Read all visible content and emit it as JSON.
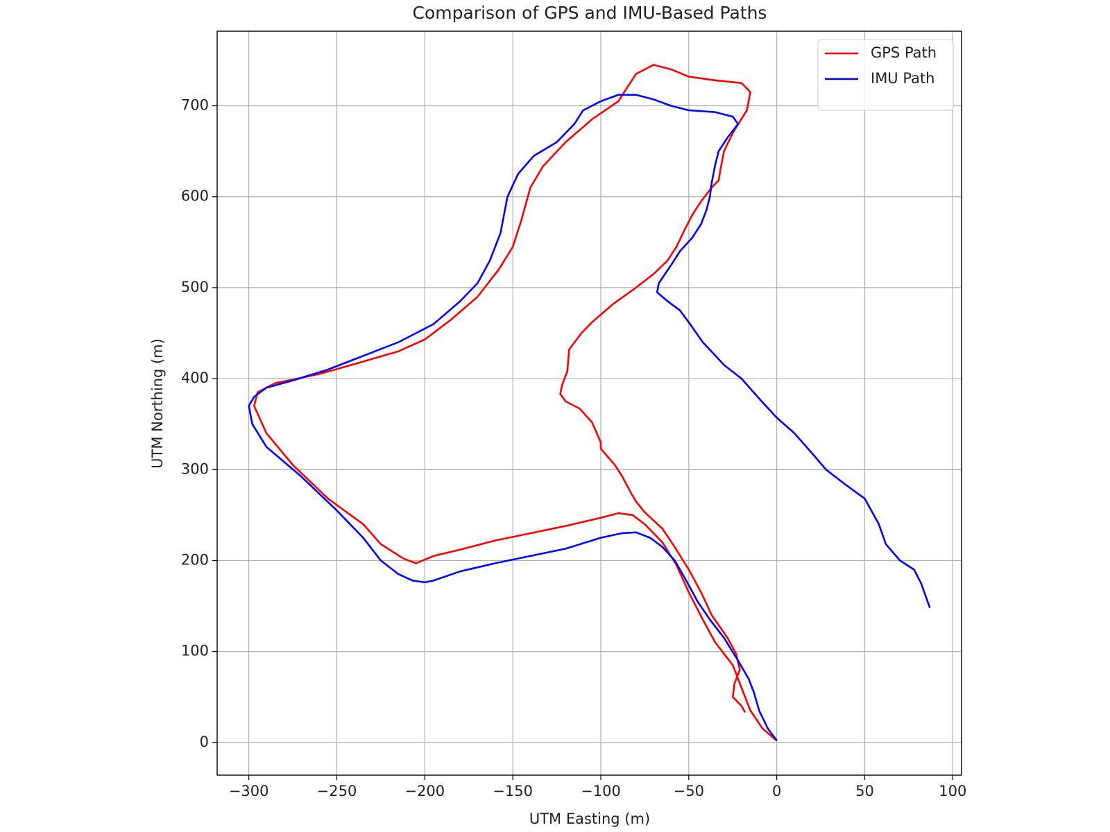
{
  "chart_data": {
    "type": "line",
    "title": "Comparison of GPS and IMU-Based Paths",
    "x_label": "UTM Easting (m)",
    "y_label": "UTM Northing (m)",
    "xlim": [
      -318,
      105
    ],
    "ylim": [
      -36,
      782
    ],
    "xticks": [
      {
        "value": -300,
        "label": "−300"
      },
      {
        "value": -250,
        "label": "−250"
      },
      {
        "value": -200,
        "label": "−200"
      },
      {
        "value": -150,
        "label": "−150"
      },
      {
        "value": -100,
        "label": "−100"
      },
      {
        "value": -50,
        "label": "−50"
      },
      0,
      50,
      100
    ],
    "yticks": [
      0,
      100,
      200,
      300,
      400,
      500,
      600,
      700
    ],
    "grid": true,
    "legend": "upper right",
    "series": [
      {
        "name": "GPS Path",
        "color": "#ff0000",
        "x": [
          0,
          -8,
          -15,
          -20,
          -25,
          -35,
          -42,
          -50,
          -57,
          -65,
          -75,
          -82,
          -90,
          -100,
          -120,
          -140,
          -160,
          -180,
          -195,
          -205,
          -212,
          -225,
          -235,
          -255,
          -275,
          -290,
          -297,
          -295,
          -285,
          -275,
          -260,
          -240,
          -215,
          -200,
          -185,
          -170,
          -158,
          -150,
          -145,
          -140,
          -133,
          -120,
          -105,
          -90,
          -85,
          -80,
          -70,
          -60,
          -50,
          -35,
          -20,
          -15,
          -17,
          -25,
          -30,
          -32,
          -33,
          -37,
          -43,
          -48,
          -52,
          -57,
          -62,
          -70,
          -80,
          -93,
          -105,
          -111,
          -118,
          -119,
          -122,
          -123,
          -120,
          -112,
          -105,
          -100,
          -100,
          -92,
          -88,
          -83,
          -80,
          -75,
          -65,
          -58,
          -50,
          -43,
          -37,
          -28,
          -23,
          -21,
          -24,
          -25,
          -20,
          -18
        ],
        "values": [
          2,
          15,
          35,
          60,
          85,
          110,
          135,
          165,
          195,
          220,
          240,
          250,
          252,
          247,
          238,
          230,
          222,
          212,
          205,
          197,
          202,
          218,
          240,
          268,
          305,
          340,
          370,
          385,
          395,
          399,
          405,
          416,
          430,
          443,
          465,
          490,
          520,
          545,
          575,
          610,
          633,
          660,
          685,
          705,
          720,
          735,
          745,
          740,
          732,
          728,
          725,
          715,
          695,
          670,
          650,
          630,
          618,
          610,
          595,
          580,
          565,
          545,
          530,
          515,
          500,
          482,
          462,
          450,
          432,
          408,
          393,
          383,
          375,
          367,
          352,
          330,
          323,
          305,
          293,
          275,
          265,
          253,
          235,
          215,
          190,
          165,
          140,
          115,
          97,
          80,
          65,
          50,
          40,
          33
        ]
      },
      {
        "name": "IMU Path",
        "color": "#0000ff",
        "x": [
          0,
          -5,
          -10,
          -13,
          -16,
          -22,
          -30,
          -38,
          -45,
          -52,
          -58,
          -65,
          -72,
          -80,
          -88,
          -100,
          -120,
          -140,
          -160,
          -180,
          -195,
          -200,
          -207,
          -215,
          -225,
          -235,
          -250,
          -270,
          -290,
          -298,
          -300,
          -297,
          -290,
          -275,
          -255,
          -235,
          -215,
          -195,
          -180,
          -170,
          -163,
          -157,
          -153,
          -147,
          -138,
          -125,
          -115,
          -110,
          -100,
          -90,
          -80,
          -70,
          -60,
          -50,
          -35,
          -25,
          -22,
          -28,
          -33,
          -35,
          -37,
          -38,
          -40,
          -43,
          -48,
          -55,
          -60,
          -67,
          -68,
          -62,
          -55,
          -50,
          -42,
          -30,
          -20,
          -10,
          0,
          10,
          20,
          28,
          38,
          50,
          58,
          62,
          70,
          78,
          82,
          87
        ],
        "values": [
          2,
          15,
          35,
          55,
          70,
          90,
          115,
          135,
          155,
          180,
          200,
          215,
          225,
          231,
          230,
          225,
          213,
          205,
          197,
          188,
          178,
          176,
          178,
          185,
          200,
          225,
          255,
          292,
          325,
          350,
          370,
          380,
          390,
          398,
          410,
          425,
          440,
          460,
          485,
          505,
          530,
          560,
          600,
          625,
          645,
          660,
          680,
          695,
          705,
          712,
          712,
          707,
          700,
          695,
          693,
          688,
          680,
          665,
          650,
          635,
          615,
          600,
          585,
          570,
          555,
          540,
          525,
          505,
          495,
          485,
          475,
          462,
          440,
          415,
          400,
          378,
          357,
          340,
          318,
          300,
          285,
          268,
          240,
          218,
          200,
          190,
          175,
          148
        ]
      }
    ]
  }
}
